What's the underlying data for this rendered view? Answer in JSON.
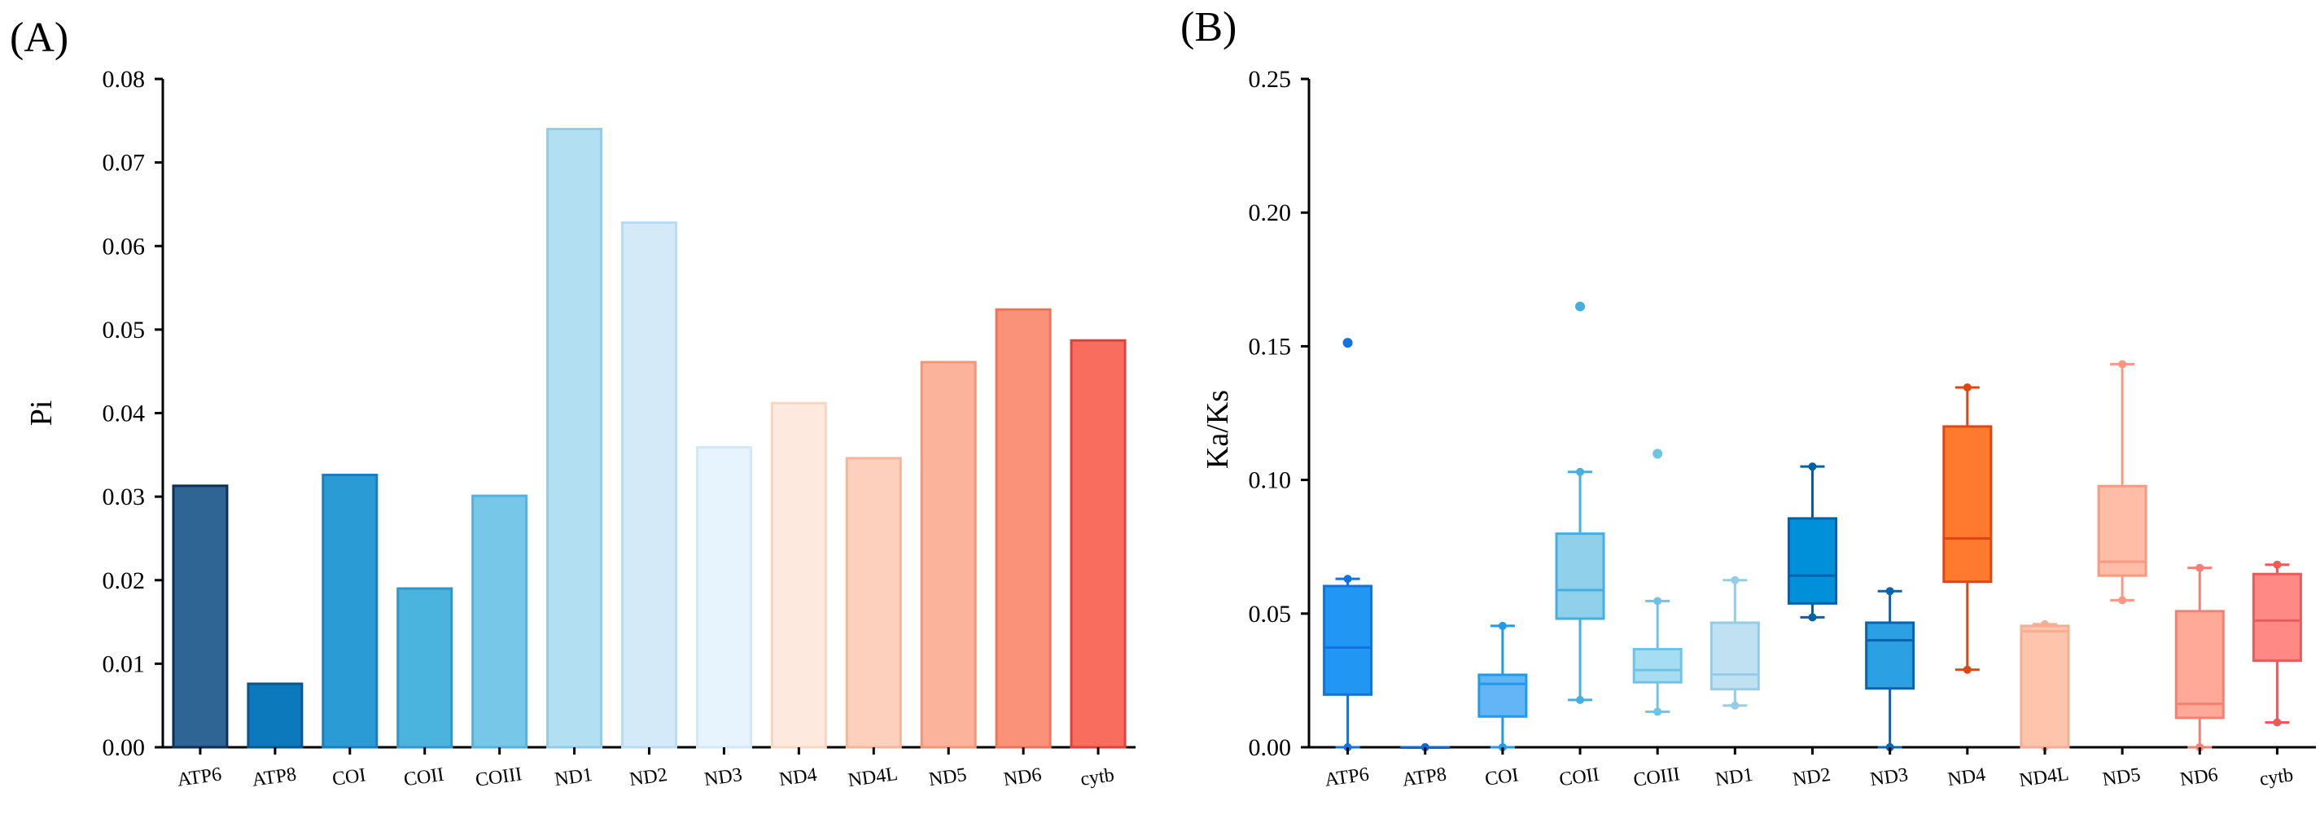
{
  "chart_data": [
    {
      "panel_label": "(A)",
      "type": "bar",
      "title": "",
      "xlabel": "",
      "ylabel": "Pi",
      "ylim": [
        0,
        0.08
      ],
      "yticks": [
        "0.00",
        "0.01",
        "0.02",
        "0.03",
        "0.04",
        "0.05",
        "0.06",
        "0.07",
        "0.08"
      ],
      "grid": false,
      "categories": [
        "ATP6",
        "ATP8",
        "COI",
        "COII",
        "COIII",
        "ND1",
        "ND2",
        "ND3",
        "ND4",
        "ND4L",
        "ND5",
        "ND6",
        "cytb"
      ],
      "values": [
        0.0313,
        0.0076,
        0.0326,
        0.019,
        0.0301,
        0.074,
        0.0628,
        0.0359,
        0.0412,
        0.0346,
        0.0461,
        0.0524,
        0.0487
      ],
      "colors": [
        "#2f6594",
        "#0b79bc",
        "#2a9bd5",
        "#4ab3de",
        "#77c8e8",
        "#b3dff2",
        "#d5eaf8",
        "#e8f4fd",
        "#fde9dd",
        "#fcd0bc",
        "#fbb49b",
        "#fa9279",
        "#f96d5f"
      ],
      "edge_colors": [
        "#0d3059",
        "#08558f",
        "#1a7dbd",
        "#2f98c9",
        "#55b2dc",
        "#8fcdec",
        "#b8dcf3",
        "#d2e8f8",
        "#f8d6c2",
        "#f5b59a",
        "#f2967a",
        "#ef725b",
        "#e2403a"
      ]
    },
    {
      "panel_label": "(B)",
      "type": "box",
      "title": "",
      "xlabel": "",
      "ylabel": "Ka/Ks",
      "ylim": [
        0,
        0.25
      ],
      "yticks": [
        "0.00",
        "0.05",
        "0.10",
        "0.15",
        "0.20",
        "0.25"
      ],
      "grid": false,
      "categories": [
        "ATP6",
        "ATP8",
        "COI",
        "COII",
        "COIII",
        "ND1",
        "ND2",
        "ND3",
        "ND4",
        "ND4L",
        "ND5",
        "ND6",
        "cytb"
      ],
      "boxes": [
        {
          "min": 0.0,
          "q1": 0.0197,
          "median": 0.0373,
          "q3": 0.0603,
          "max": 0.063,
          "outliers": [
            0.1513
          ]
        },
        {
          "min": 0.0,
          "q1": 0.0,
          "median": 0.0,
          "q3": 0.0,
          "max": 0.0,
          "outliers": []
        },
        {
          "min": 0.0,
          "q1": 0.0115,
          "median": 0.0237,
          "q3": 0.0271,
          "max": 0.0454,
          "outliers": []
        },
        {
          "min": 0.0177,
          "q1": 0.0481,
          "median": 0.0588,
          "q3": 0.0799,
          "max": 0.103,
          "outliers": [
            0.1649
          ]
        },
        {
          "min": 0.0133,
          "q1": 0.0243,
          "median": 0.0289,
          "q3": 0.0367,
          "max": 0.0547,
          "outliers": [
            0.1098
          ]
        },
        {
          "min": 0.0156,
          "q1": 0.0217,
          "median": 0.0272,
          "q3": 0.0466,
          "max": 0.0625,
          "outliers": []
        },
        {
          "min": 0.0486,
          "q1": 0.0538,
          "median": 0.0642,
          "q3": 0.0856,
          "max": 0.105,
          "outliers": []
        },
        {
          "min": 0.0,
          "q1": 0.022,
          "median": 0.04,
          "q3": 0.0466,
          "max": 0.0584,
          "outliers": []
        },
        {
          "min": 0.029,
          "q1": 0.0619,
          "median": 0.0781,
          "q3": 0.12,
          "max": 0.1346,
          "outliers": []
        },
        {
          "min": 0.0,
          "q1": 0.0,
          "median": 0.0434,
          "q3": 0.0454,
          "max": 0.046,
          "outliers": []
        },
        {
          "min": 0.055,
          "q1": 0.0642,
          "median": 0.0694,
          "q3": 0.0977,
          "max": 0.1433,
          "outliers": []
        },
        {
          "min": 0.0,
          "q1": 0.011,
          "median": 0.0162,
          "q3": 0.0509,
          "max": 0.0671,
          "outliers": []
        },
        {
          "min": 0.0093,
          "q1": 0.0324,
          "median": 0.0474,
          "q3": 0.0648,
          "max": 0.0683,
          "outliers": []
        }
      ],
      "fill_colors": [
        "#2196f3",
        "#1a73e8",
        "#64b5f6",
        "#90d0ea",
        "#a7ddf2",
        "#bfe1f2",
        "#0090d9",
        "#2ba0e3",
        "#ff7a2f",
        "#ffc4ac",
        "#ffbca6",
        "#ffaa99",
        "#ff8a85"
      ],
      "line_colors": [
        "#1173e0",
        "#1167d4",
        "#1e9bea",
        "#46aee0",
        "#6ec3e6",
        "#95cde9",
        "#0060a8",
        "#0a63ad",
        "#e34510",
        "#f7ad91",
        "#f79a80",
        "#f28173",
        "#ee5a5a"
      ]
    }
  ]
}
